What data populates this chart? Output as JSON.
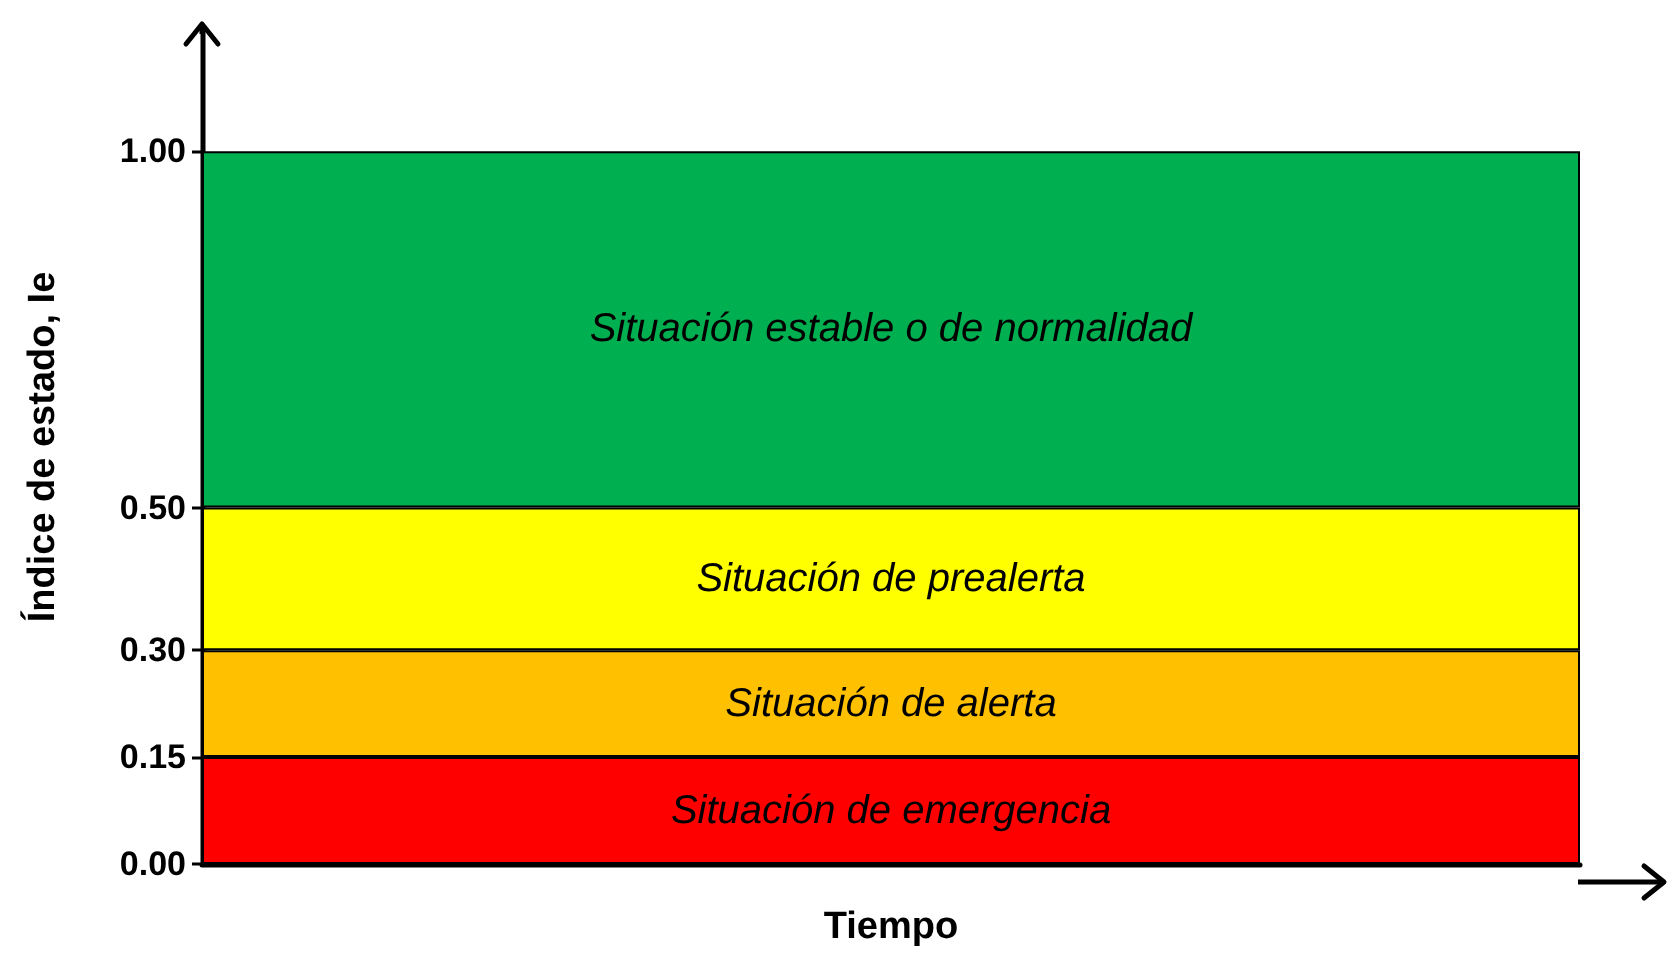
{
  "chart_data": {
    "type": "bar",
    "stacked": true,
    "xlabel": "Tiempo",
    "ylabel": "Índice de estado, Ie",
    "categories": [
      null
    ],
    "ylim": [
      0,
      1.17
    ],
    "yticks": [
      {
        "value": 0,
        "label": "0.00"
      },
      {
        "value": 0.15,
        "label": "0.15"
      },
      {
        "value": 0.3,
        "label": "0.30"
      },
      {
        "value": 0.5,
        "label": "0.50"
      },
      {
        "value": 1,
        "label": "1.00"
      }
    ],
    "series": [
      {
        "name": "Situación de emergencia",
        "color": "#ff0000",
        "values": [
          0.15
        ]
      },
      {
        "name": "Situación de alerta",
        "color": "#ffc000",
        "values": [
          0.15
        ]
      },
      {
        "name": "Situación de prealerta",
        "color": "#ffff00",
        "values": [
          0.2
        ]
      },
      {
        "name": "Situación estable o de normalidad",
        "color": "#00b050",
        "values": [
          0.5
        ]
      }
    ]
  }
}
